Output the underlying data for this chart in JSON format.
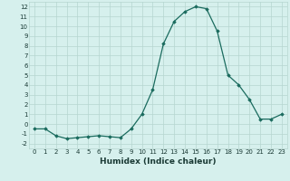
{
  "x": [
    0,
    1,
    2,
    3,
    4,
    5,
    6,
    7,
    8,
    9,
    10,
    11,
    12,
    13,
    14,
    15,
    16,
    17,
    18,
    19,
    20,
    21,
    22,
    23
  ],
  "y": [
    -0.5,
    -0.5,
    -1.2,
    -1.5,
    -1.4,
    -1.3,
    -1.2,
    -1.3,
    -1.4,
    -0.5,
    1.0,
    3.5,
    8.2,
    10.5,
    11.5,
    12.0,
    11.8,
    9.5,
    5.0,
    4.0,
    2.5,
    0.5,
    0.5,
    1.0
  ],
  "xlabel": "Humidex (Indice chaleur)",
  "xlim": [
    -0.5,
    23.5
  ],
  "ylim": [
    -2.5,
    12.5
  ],
  "yticks": [
    -2,
    -1,
    0,
    1,
    2,
    3,
    4,
    5,
    6,
    7,
    8,
    9,
    10,
    11,
    12
  ],
  "xticks": [
    0,
    1,
    2,
    3,
    4,
    5,
    6,
    7,
    8,
    9,
    10,
    11,
    12,
    13,
    14,
    15,
    16,
    17,
    18,
    19,
    20,
    21,
    22,
    23
  ],
  "line_color": "#1a6b5e",
  "marker": "D",
  "marker_size": 1.8,
  "bg_color": "#d6f0ed",
  "grid_color": "#b5d5d0",
  "font_color": "#1a3a35",
  "tick_fontsize": 5.0,
  "xlabel_fontsize": 6.5
}
